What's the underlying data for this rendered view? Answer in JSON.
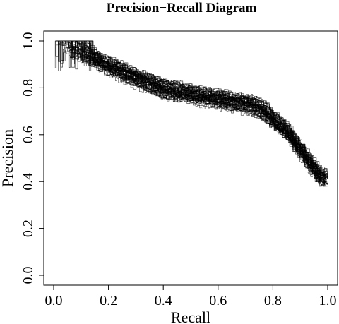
{
  "chart_data": {
    "type": "line",
    "title": "Precision−Recall Diagram",
    "xlabel": "Recall",
    "ylabel": "Precision",
    "xlim": [
      0,
      1
    ],
    "ylim": [
      0,
      1
    ],
    "xticks": [
      "0.0",
      "0.2",
      "0.4",
      "0.6",
      "0.8",
      "1.0"
    ],
    "yticks": [
      "0.0",
      "0.2",
      "0.4",
      "0.6",
      "0.8",
      "1.0"
    ],
    "grid": false,
    "legend": "none",
    "n_curves": 60,
    "envelope": {
      "description": "Bundle of precision-recall curves; approximate central trace",
      "recall": [
        0.0,
        0.05,
        0.1,
        0.2,
        0.3,
        0.4,
        0.5,
        0.6,
        0.7,
        0.75,
        0.8,
        0.85,
        0.9,
        0.95,
        0.97,
        1.0
      ],
      "precision": [
        1.0,
        0.97,
        0.95,
        0.89,
        0.84,
        0.79,
        0.77,
        0.75,
        0.73,
        0.71,
        0.66,
        0.61,
        0.53,
        0.45,
        0.42,
        0.41
      ]
    },
    "color": "#000000"
  }
}
